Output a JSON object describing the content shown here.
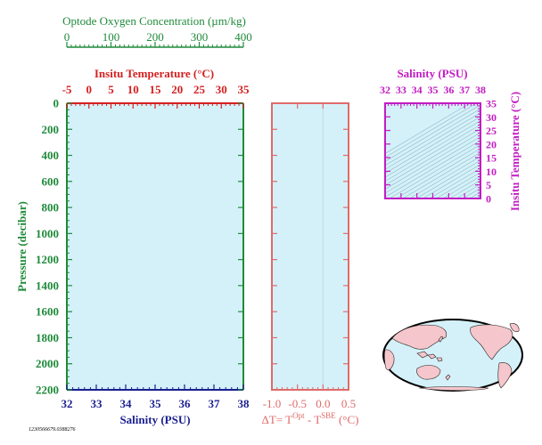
{
  "colors": {
    "plot_bg": "#d4f1f9",
    "oxygen": "#1f8a3a",
    "temperature": "#d42020",
    "salinity": "#1a1f8f",
    "pressure": "#1f8a3a",
    "delta_t": "#e06a6a",
    "ts_axes": "#c21cc2",
    "land": "#f5c6cb",
    "ocean": "#d4f1f9"
  },
  "chart_data": [
    {
      "type": "line",
      "name": "profile",
      "title": "",
      "top_axis_1": {
        "label": "Optode Oxygen Concentration (µm/kg)",
        "range": [
          0,
          400
        ],
        "ticks": [
          "0",
          "100",
          "200",
          "300",
          "400"
        ]
      },
      "top_axis_2": {
        "label": "Insitu Temperature (°C)",
        "range": [
          -5,
          35
        ],
        "ticks": [
          "-5",
          "0",
          "5",
          "10",
          "15",
          "20",
          "25",
          "30",
          "35"
        ]
      },
      "y_axis": {
        "label": "Pressure (decibar)",
        "range": [
          0,
          2200
        ],
        "inverted": true,
        "ticks": [
          "0",
          "200",
          "400",
          "600",
          "800",
          "1000",
          "1200",
          "1400",
          "1600",
          "1800",
          "2000",
          "2200"
        ]
      },
      "x_axis": {
        "label": "Salinity (PSU)",
        "range": [
          32,
          38
        ],
        "ticks": [
          "32",
          "33",
          "34",
          "35",
          "36",
          "37",
          "38"
        ]
      },
      "series": []
    },
    {
      "type": "line",
      "name": "delta_t",
      "x_axis": {
        "label_prefix": "ΔT= T",
        "label_sup1": "Opt",
        "label_mid": " - T",
        "label_sup2": "SBE",
        "label_suffix": " (°C)",
        "range": [
          -1.0,
          0.5
        ],
        "ticks": [
          "-1.0",
          "-0.5",
          "0.0",
          "0.5"
        ]
      },
      "y_axis": {
        "range": [
          0,
          2200
        ],
        "inverted": true
      },
      "series": []
    },
    {
      "type": "scatter",
      "name": "ts_diagram",
      "x_axis": {
        "label": "Salinity (PSU)",
        "range": [
          32,
          38
        ],
        "ticks": [
          "32",
          "33",
          "34",
          "35",
          "36",
          "37",
          "38"
        ]
      },
      "y_axis": {
        "label": "Insitu Temperature (°C)",
        "range": [
          0,
          35
        ],
        "ticks": [
          "0",
          "5",
          "10",
          "15",
          "20",
          "25",
          "30",
          "35"
        ]
      },
      "grid": "density contours",
      "series": []
    }
  ],
  "footer": {
    "id_text": "1230566679.0388276"
  },
  "map": {
    "projection": "world map, Pacific-centred"
  }
}
